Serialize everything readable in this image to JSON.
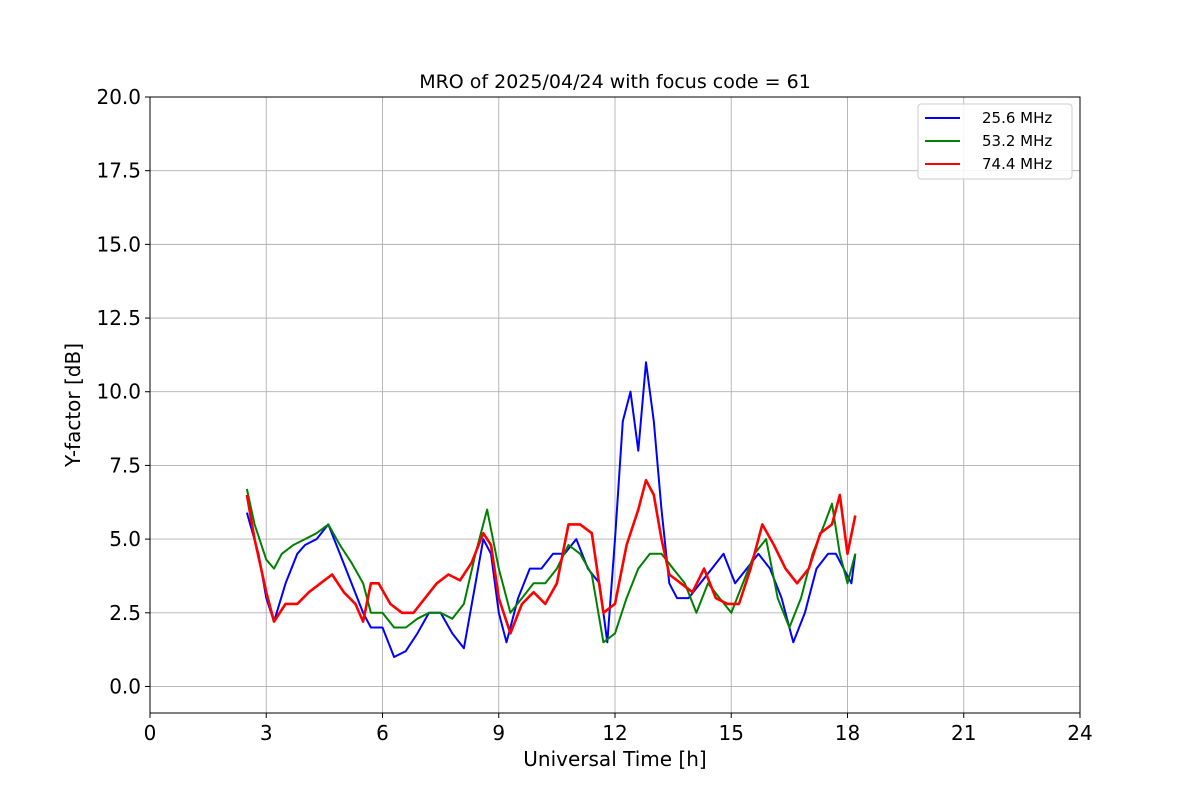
{
  "chart_data": {
    "type": "line",
    "title": "MRO of 2025/04/24 with focus code = 61",
    "xlabel": "Universal Time [h]",
    "ylabel": "Y-factor [dB]",
    "xlim": [
      0,
      24
    ],
    "ylim": [
      -0.9,
      20.0
    ],
    "xticks": [
      "0",
      "3",
      "6",
      "9",
      "12",
      "15",
      "18",
      "21",
      "24"
    ],
    "yticks": [
      "0.0",
      "2.5",
      "5.0",
      "7.5",
      "10.0",
      "12.5",
      "15.0",
      "17.5",
      "20.0"
    ],
    "grid": true,
    "legend_position": "top-right",
    "series": [
      {
        "name": "25.6 MHz",
        "color": "#0000ff",
        "x": [
          2.5,
          2.8,
          3.0,
          3.2,
          3.5,
          3.8,
          4.0,
          4.3,
          4.6,
          4.9,
          5.2,
          5.5,
          5.7,
          6.0,
          6.3,
          6.6,
          6.9,
          7.2,
          7.5,
          7.8,
          8.1,
          8.4,
          8.6,
          8.8,
          9.0,
          9.2,
          9.5,
          9.8,
          10.1,
          10.4,
          10.7,
          11.0,
          11.3,
          11.6,
          11.8,
          12.0,
          12.2,
          12.4,
          12.6,
          12.8,
          13.0,
          13.2,
          13.4,
          13.6,
          13.9,
          14.2,
          14.5,
          14.8,
          15.1,
          15.4,
          15.7,
          16.0,
          16.3,
          16.6,
          16.9,
          17.2,
          17.5,
          17.7,
          17.9,
          18.1,
          18.2
        ],
        "y": [
          5.9,
          4.5,
          3.0,
          2.2,
          3.5,
          4.5,
          4.8,
          5.0,
          5.5,
          4.5,
          3.5,
          2.5,
          2.0,
          2.0,
          1.0,
          1.2,
          1.8,
          2.5,
          2.5,
          1.8,
          1.3,
          3.5,
          5.0,
          4.5,
          2.5,
          1.5,
          3.0,
          4.0,
          4.0,
          4.5,
          4.5,
          5.0,
          4.0,
          3.5,
          1.5,
          5.0,
          9.0,
          10.0,
          8.0,
          11.0,
          9.0,
          6.0,
          3.5,
          3.0,
          3.0,
          3.5,
          4.0,
          4.5,
          3.5,
          4.0,
          4.5,
          4.0,
          3.0,
          1.5,
          2.5,
          4.0,
          4.5,
          4.5,
          4.0,
          3.5,
          4.5
        ]
      },
      {
        "name": "53.2 MHz",
        "color": "#008000",
        "x": [
          2.5,
          2.7,
          3.0,
          3.2,
          3.4,
          3.7,
          4.0,
          4.3,
          4.6,
          4.9,
          5.2,
          5.5,
          5.7,
          6.0,
          6.3,
          6.6,
          6.9,
          7.2,
          7.5,
          7.8,
          8.1,
          8.4,
          8.7,
          9.0,
          9.3,
          9.6,
          9.9,
          10.2,
          10.5,
          10.8,
          11.1,
          11.4,
          11.7,
          12.0,
          12.3,
          12.6,
          12.9,
          13.2,
          13.5,
          13.8,
          14.1,
          14.4,
          14.7,
          15.0,
          15.3,
          15.6,
          15.9,
          16.2,
          16.5,
          16.8,
          17.1,
          17.4,
          17.6,
          17.8,
          18.0,
          18.2
        ],
        "y": [
          6.7,
          5.5,
          4.3,
          4.0,
          4.5,
          4.8,
          5.0,
          5.2,
          5.5,
          4.8,
          4.2,
          3.5,
          2.5,
          2.5,
          2.0,
          2.0,
          2.3,
          2.5,
          2.5,
          2.3,
          2.8,
          4.5,
          6.0,
          4.0,
          2.5,
          3.0,
          3.5,
          3.5,
          4.0,
          4.8,
          4.5,
          3.8,
          1.5,
          1.8,
          3.0,
          4.0,
          4.5,
          4.5,
          4.0,
          3.5,
          2.5,
          3.5,
          3.0,
          2.5,
          3.5,
          4.5,
          5.0,
          3.0,
          2.0,
          3.0,
          4.5,
          5.5,
          6.2,
          4.5,
          3.5,
          4.5
        ]
      },
      {
        "name": "74.4 MHz",
        "color": "#ff0000",
        "x": [
          2.5,
          2.7,
          3.0,
          3.2,
          3.5,
          3.8,
          4.1,
          4.4,
          4.7,
          5.0,
          5.3,
          5.5,
          5.7,
          5.9,
          6.2,
          6.5,
          6.8,
          7.1,
          7.4,
          7.7,
          8.0,
          8.3,
          8.6,
          8.8,
          9.0,
          9.3,
          9.6,
          9.9,
          10.2,
          10.5,
          10.8,
          11.1,
          11.4,
          11.7,
          12.0,
          12.3,
          12.6,
          12.8,
          13.0,
          13.2,
          13.4,
          13.7,
          14.0,
          14.3,
          14.6,
          14.9,
          15.2,
          15.5,
          15.8,
          16.1,
          16.4,
          16.7,
          17.0,
          17.3,
          17.6,
          17.8,
          18.0,
          18.2
        ],
        "y": [
          6.5,
          5.0,
          3.2,
          2.2,
          2.8,
          2.8,
          3.2,
          3.5,
          3.8,
          3.2,
          2.8,
          2.2,
          3.5,
          3.5,
          2.8,
          2.5,
          2.5,
          3.0,
          3.5,
          3.8,
          3.6,
          4.2,
          5.2,
          4.8,
          3.0,
          1.8,
          2.8,
          3.2,
          2.8,
          3.5,
          5.5,
          5.5,
          5.2,
          2.5,
          2.8,
          4.8,
          6.0,
          7.0,
          6.5,
          5.0,
          3.8,
          3.5,
          3.2,
          4.0,
          3.0,
          2.8,
          2.8,
          4.0,
          5.5,
          4.8,
          4.0,
          3.5,
          4.0,
          5.2,
          5.5,
          6.5,
          4.5,
          5.8
        ]
      }
    ]
  }
}
